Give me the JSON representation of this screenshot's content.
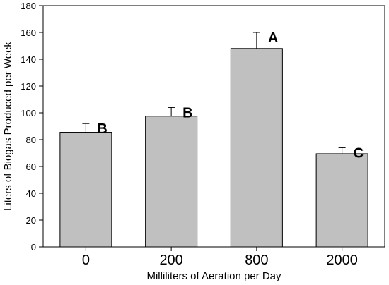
{
  "chart_data": {
    "type": "bar",
    "title": "",
    "xlabel": "Milliliters of Aeration per Day",
    "ylabel": "Liters of Biogas Produced per Week",
    "categories": [
      "0",
      "200",
      "800",
      "2000"
    ],
    "values": [
      85.5,
      97.5,
      148,
      69.5
    ],
    "errors": [
      6.5,
      6.5,
      12,
      4.5
    ],
    "significance_labels": [
      "B",
      "B",
      "A",
      "C"
    ],
    "ylim": [
      0,
      180
    ],
    "yticks": [
      "0",
      "20",
      "40",
      "60",
      "80",
      "100",
      "120",
      "140",
      "160",
      "180"
    ],
    "bar_color": "#c0c0c0",
    "grid": false,
    "legend": "none"
  }
}
